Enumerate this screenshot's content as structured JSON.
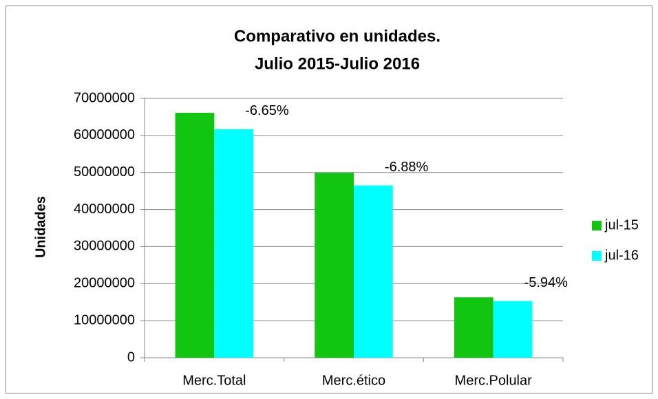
{
  "chart_data": {
    "type": "bar",
    "title": "Comparativo en unidades.",
    "subtitle": "Julio 2015-Julio 2016",
    "y_label": "Unidades",
    "categories": [
      "Merc.Total",
      "Merc.ético",
      "Merc.Polular"
    ],
    "series": [
      {
        "name": "jul-15",
        "color": "#11c511",
        "values": [
          66100000,
          49900000,
          16300000
        ]
      },
      {
        "name": "jul-16",
        "color": "#00ffff",
        "values": [
          61700000,
          46500000,
          15300000
        ]
      }
    ],
    "annotations": [
      "-6.65%",
      "-6.88%",
      "-5.94%"
    ],
    "ylim": [
      0,
      70000000
    ],
    "yticks": [
      0,
      10000000,
      20000000,
      30000000,
      40000000,
      50000000,
      60000000,
      70000000
    ],
    "grid": true,
    "legend": "right"
  }
}
